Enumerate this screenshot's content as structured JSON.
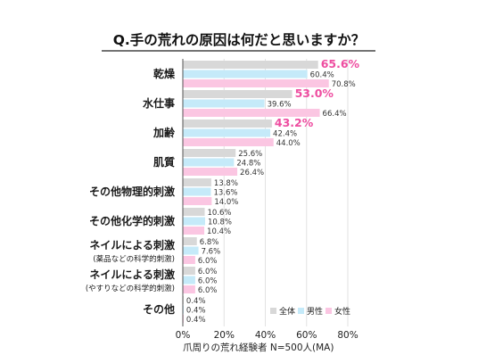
{
  "chart_data": {
    "type": "bar",
    "orientation": "horizontal",
    "title": "Q.手の荒れの原因は何だと思いますか？",
    "xlabel": "爪周りの荒れ経験者 N=500人(MA)",
    "xlim": [
      0,
      80
    ],
    "x_ticks": [
      "0%",
      "20%",
      "40%",
      "60%",
      "80%"
    ],
    "grid": true,
    "legend_position": "bottom-right",
    "categories": [
      {
        "label": "乾燥",
        "sub": ""
      },
      {
        "label": "水仕事",
        "sub": ""
      },
      {
        "label": "加齢",
        "sub": ""
      },
      {
        "label": "肌質",
        "sub": ""
      },
      {
        "label": "その他物理的刺激",
        "sub": ""
      },
      {
        "label": "その他化学的刺激",
        "sub": ""
      },
      {
        "label": "ネイルによる刺激",
        "sub": "(薬品などの科学的刺激)"
      },
      {
        "label": "ネイルによる刺激",
        "sub": "(やすりなどの科学的刺激)"
      },
      {
        "label": "その他",
        "sub": ""
      }
    ],
    "series": [
      {
        "name": "全体",
        "color": "#d8d8d8",
        "values": [
          65.6,
          53.0,
          43.2,
          25.6,
          13.8,
          10.6,
          6.8,
          6.0,
          0.4
        ],
        "labels": [
          "65.6%",
          "53.0%",
          "43.2%",
          "25.6%",
          "13.8%",
          "10.6%",
          "6.8%",
          "6.0%",
          "0.4%"
        ]
      },
      {
        "name": "男性",
        "color": "#c5eaf9",
        "values": [
          60.4,
          39.6,
          42.4,
          24.8,
          13.6,
          10.8,
          7.6,
          6.0,
          0.4
        ],
        "labels": [
          "60.4%",
          "39.6%",
          "42.4%",
          "24.8%",
          "13.6%",
          "10.8%",
          "7.6%",
          "6.0%",
          "0.4%"
        ]
      },
      {
        "name": "女性",
        "color": "#fbc6e2",
        "values": [
          70.8,
          66.4,
          44.0,
          26.4,
          14.0,
          10.4,
          6.0,
          6.0,
          0.4
        ],
        "labels": [
          "70.8%",
          "66.4%",
          "44.0%",
          "26.4%",
          "14.0%",
          "10.4%",
          "6.0%",
          "6.0%",
          "0.4%"
        ]
      }
    ],
    "highlight": {
      "series": "全体",
      "categories": [
        0,
        1,
        2
      ],
      "color": "#ee4da0"
    }
  }
}
